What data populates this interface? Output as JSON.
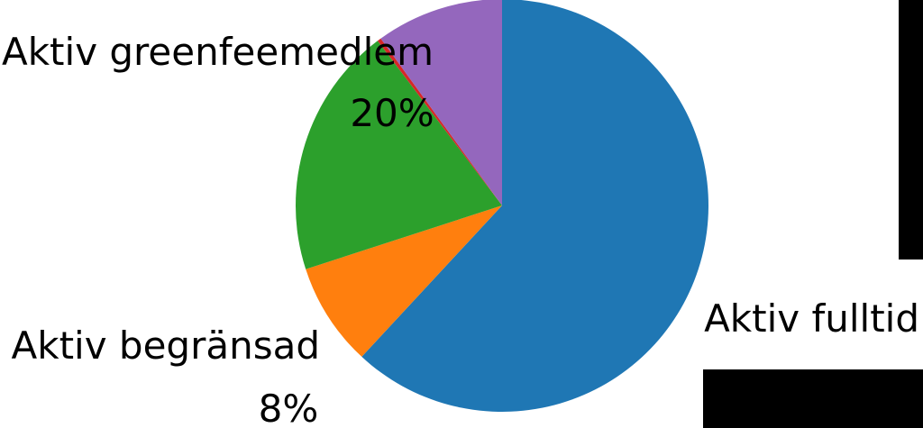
{
  "chart_data": {
    "type": "pie",
    "start_angle_deg": 90,
    "direction": "clockwise",
    "slices": [
      {
        "label": "Aktiv fulltid",
        "value": 61.9,
        "value_label": "",
        "color": "#1f77b4"
      },
      {
        "label": "Aktiv begränsad",
        "value": 8.1,
        "value_label": "8%",
        "color": "#ff7f0e"
      },
      {
        "label": "Aktiv greenfeemedlem",
        "value": 19.7,
        "value_label": "20%",
        "color": "#2ca02c"
      },
      {
        "label": "",
        "value": 0.3,
        "value_label": "",
        "color": "#d62728"
      },
      {
        "label": "",
        "value": 10.0,
        "value_label": "",
        "color": "#9467bd"
      }
    ]
  }
}
